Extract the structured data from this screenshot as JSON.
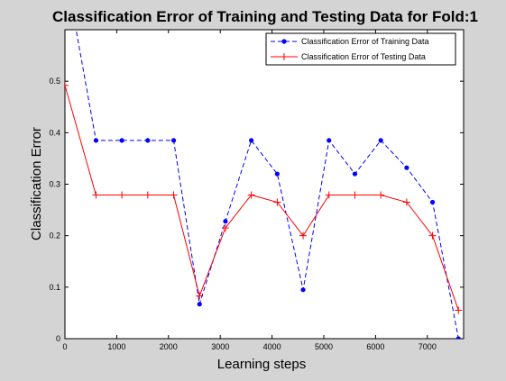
{
  "chart_data": {
    "type": "line",
    "title": "Classification Error of Training and Testing Data for Fold:1",
    "xlabel": "Learning steps",
    "ylabel": "Classification Error",
    "xlim": [
      0,
      7700
    ],
    "ylim": [
      0,
      0.6
    ],
    "xticks": [
      0,
      1000,
      2000,
      3000,
      4000,
      5000,
      6000,
      7000
    ],
    "yticks": [
      0,
      0.1,
      0.2,
      0.3,
      0.4,
      0.5
    ],
    "grid": false,
    "legend_position": "top-right",
    "series": [
      {
        "name": "Classification Error of Training Data",
        "color": "#0000ff",
        "line_style": "dashed",
        "marker": "dot",
        "x": [
          0,
          600,
          1100,
          1600,
          2100,
          2600,
          3100,
          3600,
          4100,
          4600,
          5100,
          5600,
          6100,
          6600,
          7100,
          7600
        ],
        "y": [
          0.72,
          0.385,
          0.385,
          0.385,
          0.385,
          0.067,
          0.228,
          0.385,
          0.32,
          0.095,
          0.385,
          0.32,
          0.385,
          0.332,
          0.265,
          0.0
        ]
      },
      {
        "name": "Classification Error of Testing Data",
        "color": "#ff0000",
        "line_style": "solid",
        "marker": "plus",
        "x": [
          0,
          600,
          1100,
          1600,
          2100,
          2600,
          3100,
          3600,
          4100,
          4600,
          5100,
          5600,
          6100,
          6600,
          7100,
          7600
        ],
        "y": [
          0.492,
          0.279,
          0.279,
          0.279,
          0.279,
          0.083,
          0.215,
          0.279,
          0.265,
          0.2,
          0.279,
          0.279,
          0.279,
          0.265,
          0.2,
          0.055
        ]
      }
    ]
  }
}
